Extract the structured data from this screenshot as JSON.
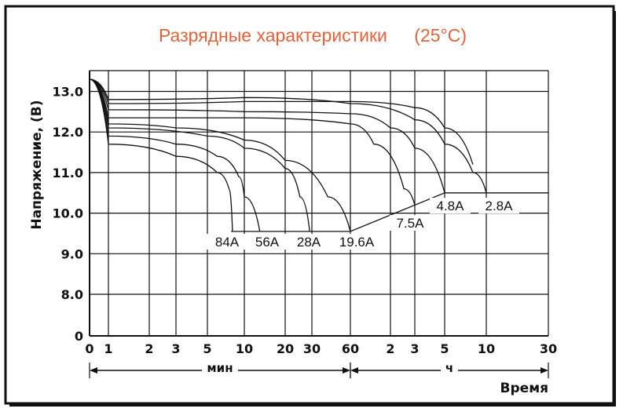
{
  "chart_data": {
    "type": "line",
    "title": "Разрядные характеристики",
    "subtitle": "(25°C)",
    "ylabel": "Напряжение, (В)",
    "xlabel": "Время",
    "ylim": [
      0,
      13.5
    ],
    "y_ticks": [
      "0",
      "8.0",
      "9.0",
      "10.0",
      "11.0",
      "12.0",
      "13.0"
    ],
    "x_ticks": [
      "0",
      "1",
      "2",
      "3",
      "5",
      "10",
      "20",
      "30",
      "60",
      "2",
      "3",
      "5",
      "10",
      "30"
    ],
    "x_segments": [
      {
        "label": "мин",
        "from_tick": 0,
        "to_tick": 8
      },
      {
        "label": "ч",
        "from_tick": 8,
        "to_tick": 13
      }
    ],
    "grid": true,
    "cutoff_line_label": "",
    "series": [
      {
        "name": "84A",
        "points": [
          [
            0,
            13.3
          ],
          [
            1,
            11.7
          ],
          [
            3,
            11.4
          ],
          [
            6,
            11.0
          ],
          [
            7.5,
            10.6
          ],
          [
            8,
            9.55
          ]
        ]
      },
      {
        "name": "56A",
        "points": [
          [
            0,
            13.3
          ],
          [
            1,
            11.9
          ],
          [
            3,
            11.7
          ],
          [
            6,
            11.4
          ],
          [
            9,
            10.9
          ],
          [
            10,
            10.4
          ],
          [
            13,
            9.55
          ]
        ]
      },
      {
        "name": "28A",
        "points": [
          [
            0,
            13.3
          ],
          [
            1,
            12.1
          ],
          [
            5,
            11.9
          ],
          [
            10,
            11.6
          ],
          [
            20,
            11.1
          ],
          [
            25,
            10.4
          ],
          [
            29,
            9.55
          ]
        ]
      },
      {
        "name": "19.6A",
        "points": [
          [
            0,
            13.3
          ],
          [
            1,
            12.2
          ],
          [
            3,
            12.1
          ],
          [
            10,
            11.8
          ],
          [
            20,
            11.3
          ],
          [
            40,
            10.4
          ],
          [
            60,
            9.55
          ]
        ]
      },
      {
        "name": "7.5A",
        "points": [
          [
            0,
            13.3
          ],
          [
            1,
            12.35
          ],
          [
            10,
            12.35
          ],
          [
            60,
            12.2
          ],
          [
            90,
            11.7
          ],
          [
            150,
            10.6
          ],
          [
            180,
            10.2
          ]
        ]
      },
      {
        "name": "4.8A",
        "points": [
          [
            0,
            13.3
          ],
          [
            1,
            12.55
          ],
          [
            10,
            12.5
          ],
          [
            60,
            12.45
          ],
          [
            120,
            12.1
          ],
          [
            180,
            11.6
          ],
          [
            300,
            10.5
          ]
        ]
      },
      {
        "name": "2.8A",
        "points": [
          [
            0,
            13.3
          ],
          [
            1,
            12.8
          ],
          [
            10,
            12.85
          ],
          [
            60,
            12.7
          ],
          [
            180,
            12.3
          ],
          [
            300,
            11.7
          ],
          [
            480,
            11.0
          ],
          [
            600,
            10.5
          ]
        ]
      }
    ],
    "extra_lines": [
      {
        "name": "",
        "points": [
          [
            0,
            13.3
          ],
          [
            1,
            12.7
          ],
          [
            10,
            12.75
          ],
          [
            60,
            12.75
          ],
          [
            180,
            12.6
          ],
          [
            300,
            12.1
          ],
          [
            480,
            11.2
          ]
        ]
      }
    ],
    "cutoff_path": [
      [
        7.8,
        9.55
      ],
      [
        60,
        9.55
      ],
      [
        180,
        10.2
      ],
      [
        300,
        10.5
      ],
      [
        1800,
        10.5
      ]
    ],
    "series_label_text": [
      "84A",
      "56A",
      "28A",
      "19.6A",
      "7.5A",
      "4.8A",
      "2.8A"
    ]
  }
}
